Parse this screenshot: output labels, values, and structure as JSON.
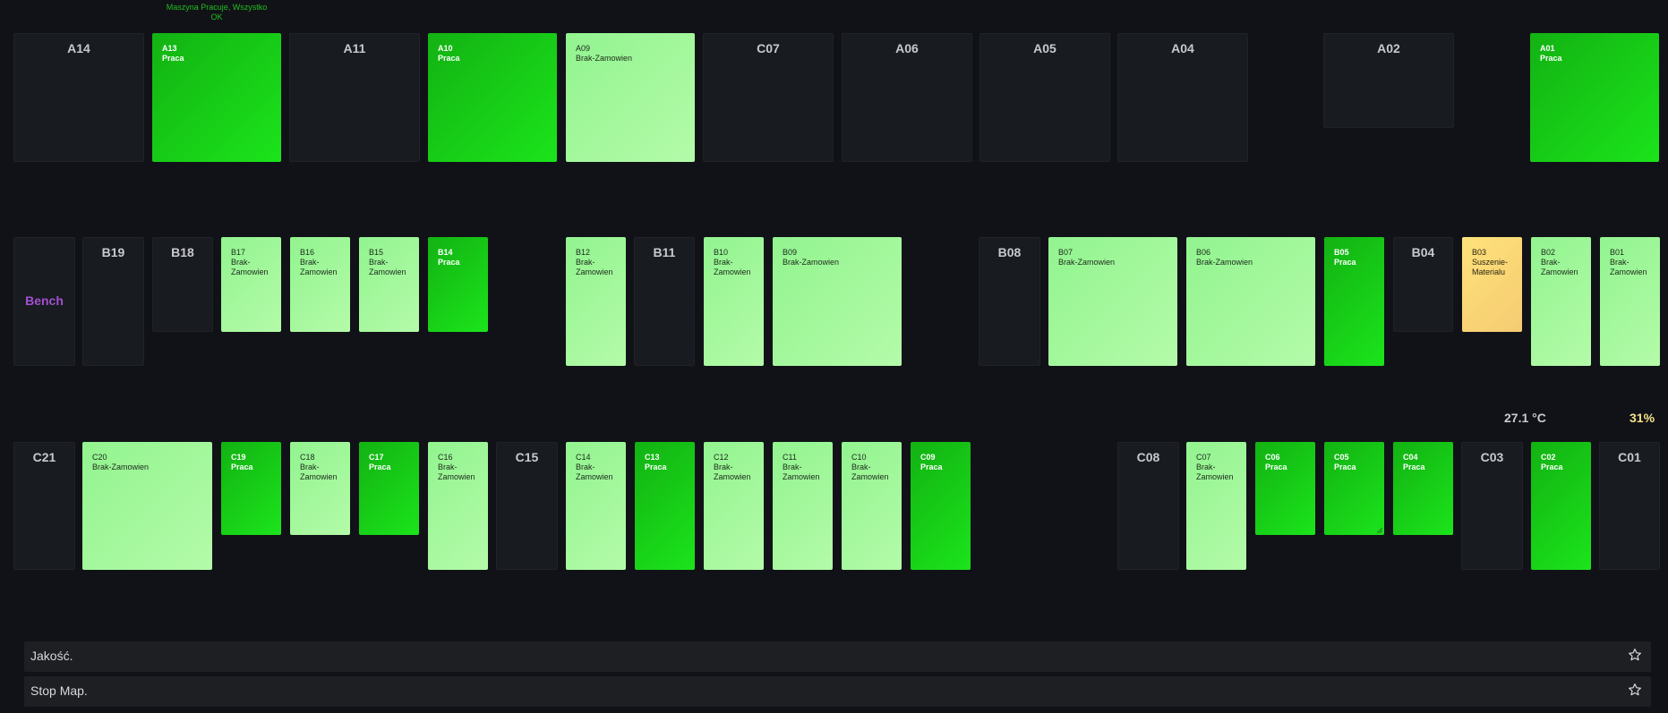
{
  "legend": "Maszyna Pracuje, Wszystko OK",
  "rows": [
    {
      "name": "row-a",
      "tiles": [
        {
          "code": "A14",
          "state": "off",
          "status": ""
        },
        {
          "code": "A13",
          "state": "praca",
          "status": "Praca"
        },
        {
          "code": "A11",
          "state": "off",
          "status": ""
        },
        {
          "code": "A10",
          "state": "praca",
          "status": "Praca"
        },
        {
          "code": "A09",
          "state": "brak",
          "status": "Brak-Zamowien"
        },
        {
          "code": "C07",
          "state": "off",
          "status": ""
        },
        {
          "code": "A06",
          "state": "off",
          "status": ""
        },
        {
          "code": "A05",
          "state": "off",
          "status": ""
        },
        {
          "code": "A04",
          "state": "off",
          "status": ""
        },
        {
          "code": "A02",
          "state": "off",
          "status": ""
        },
        {
          "code": "A01",
          "state": "praca",
          "status": "Praca"
        }
      ]
    },
    {
      "name": "row-b",
      "tiles": [
        {
          "code": "Bench",
          "state": "bench",
          "status": ""
        },
        {
          "code": "B19",
          "state": "off",
          "status": ""
        },
        {
          "code": "B18",
          "state": "off",
          "status": ""
        },
        {
          "code": "B17",
          "state": "brak",
          "status": "Brak-\nZamowien"
        },
        {
          "code": "B16",
          "state": "brak",
          "status": "Brak-\nZamowien"
        },
        {
          "code": "B15",
          "state": "brak",
          "status": "Brak-\nZamowien"
        },
        {
          "code": "B14",
          "state": "praca",
          "status": "Praca"
        },
        {
          "code": "B12",
          "state": "brak",
          "status": "Brak-\nZamowien"
        },
        {
          "code": "B11",
          "state": "off",
          "status": ""
        },
        {
          "code": "B10",
          "state": "brak",
          "status": "Brak-\nZamowien"
        },
        {
          "code": "B09",
          "state": "brak",
          "status": "Brak-Zamowien"
        },
        {
          "code": "B08",
          "state": "off",
          "status": ""
        },
        {
          "code": "B07",
          "state": "brak",
          "status": "Brak-Zamowien"
        },
        {
          "code": "B06",
          "state": "brak",
          "status": "Brak-Zamowien"
        },
        {
          "code": "B05",
          "state": "praca",
          "status": "Praca"
        },
        {
          "code": "B04",
          "state": "off",
          "status": ""
        },
        {
          "code": "B03",
          "state": "susz",
          "status": "Suszenie-\nMaterialu"
        },
        {
          "code": "B02",
          "state": "brak",
          "status": "Brak-\nZamowien"
        },
        {
          "code": "B01",
          "state": "brak",
          "status": "Brak-\nZamowien"
        }
      ]
    },
    {
      "name": "row-c",
      "tiles": [
        {
          "code": "C21",
          "state": "off",
          "status": ""
        },
        {
          "code": "C20",
          "state": "brak",
          "status": "Brak-Zamowien"
        },
        {
          "code": "C19",
          "state": "praca",
          "status": "Praca"
        },
        {
          "code": "C18",
          "state": "brak",
          "status": "Brak-\nZamowien"
        },
        {
          "code": "C17",
          "state": "praca",
          "status": "Praca"
        },
        {
          "code": "C16",
          "state": "brak",
          "status": "Brak-\nZamowien"
        },
        {
          "code": "C15",
          "state": "off",
          "status": ""
        },
        {
          "code": "C14",
          "state": "brak",
          "status": "Brak-\nZamowien"
        },
        {
          "code": "C13",
          "state": "praca",
          "status": "Praca"
        },
        {
          "code": "C12",
          "state": "brak",
          "status": "Brak-\nZamowien"
        },
        {
          "code": "C11",
          "state": "brak",
          "status": "Brak-\nZamowien"
        },
        {
          "code": "C10",
          "state": "brak",
          "status": "Brak-\nZamowien"
        },
        {
          "code": "C09",
          "state": "praca",
          "status": "Praca"
        },
        {
          "code": "C08",
          "state": "off",
          "status": ""
        },
        {
          "code": "C07",
          "state": "brak",
          "status": "Brak-\nZamowien"
        },
        {
          "code": "C06",
          "state": "praca",
          "status": "Praca"
        },
        {
          "code": "C05",
          "state": "praca",
          "status": "Praca"
        },
        {
          "code": "C04",
          "state": "praca",
          "status": "Praca"
        },
        {
          "code": "C03",
          "state": "off",
          "status": ""
        },
        {
          "code": "C02",
          "state": "praca",
          "status": "Praca"
        },
        {
          "code": "C01",
          "state": "off",
          "status": ""
        }
      ]
    }
  ],
  "readings": {
    "temperature": "27.1 °C",
    "humidity": "31%"
  },
  "panels": [
    {
      "title": "Jakość.",
      "icon": "star-icon"
    },
    {
      "title": "Stop Map.",
      "icon": "star-icon"
    }
  ],
  "colors": {
    "praca": "#1be41b",
    "brak_zamowien": "#a8f8a0",
    "suszenie_materialu": "#f8d878",
    "off": "#181b1f",
    "bench_label": "#a24fd1",
    "temperature": "#c9cbd0",
    "humidity": "#f3e28a",
    "legend": "#1fbf1f"
  }
}
